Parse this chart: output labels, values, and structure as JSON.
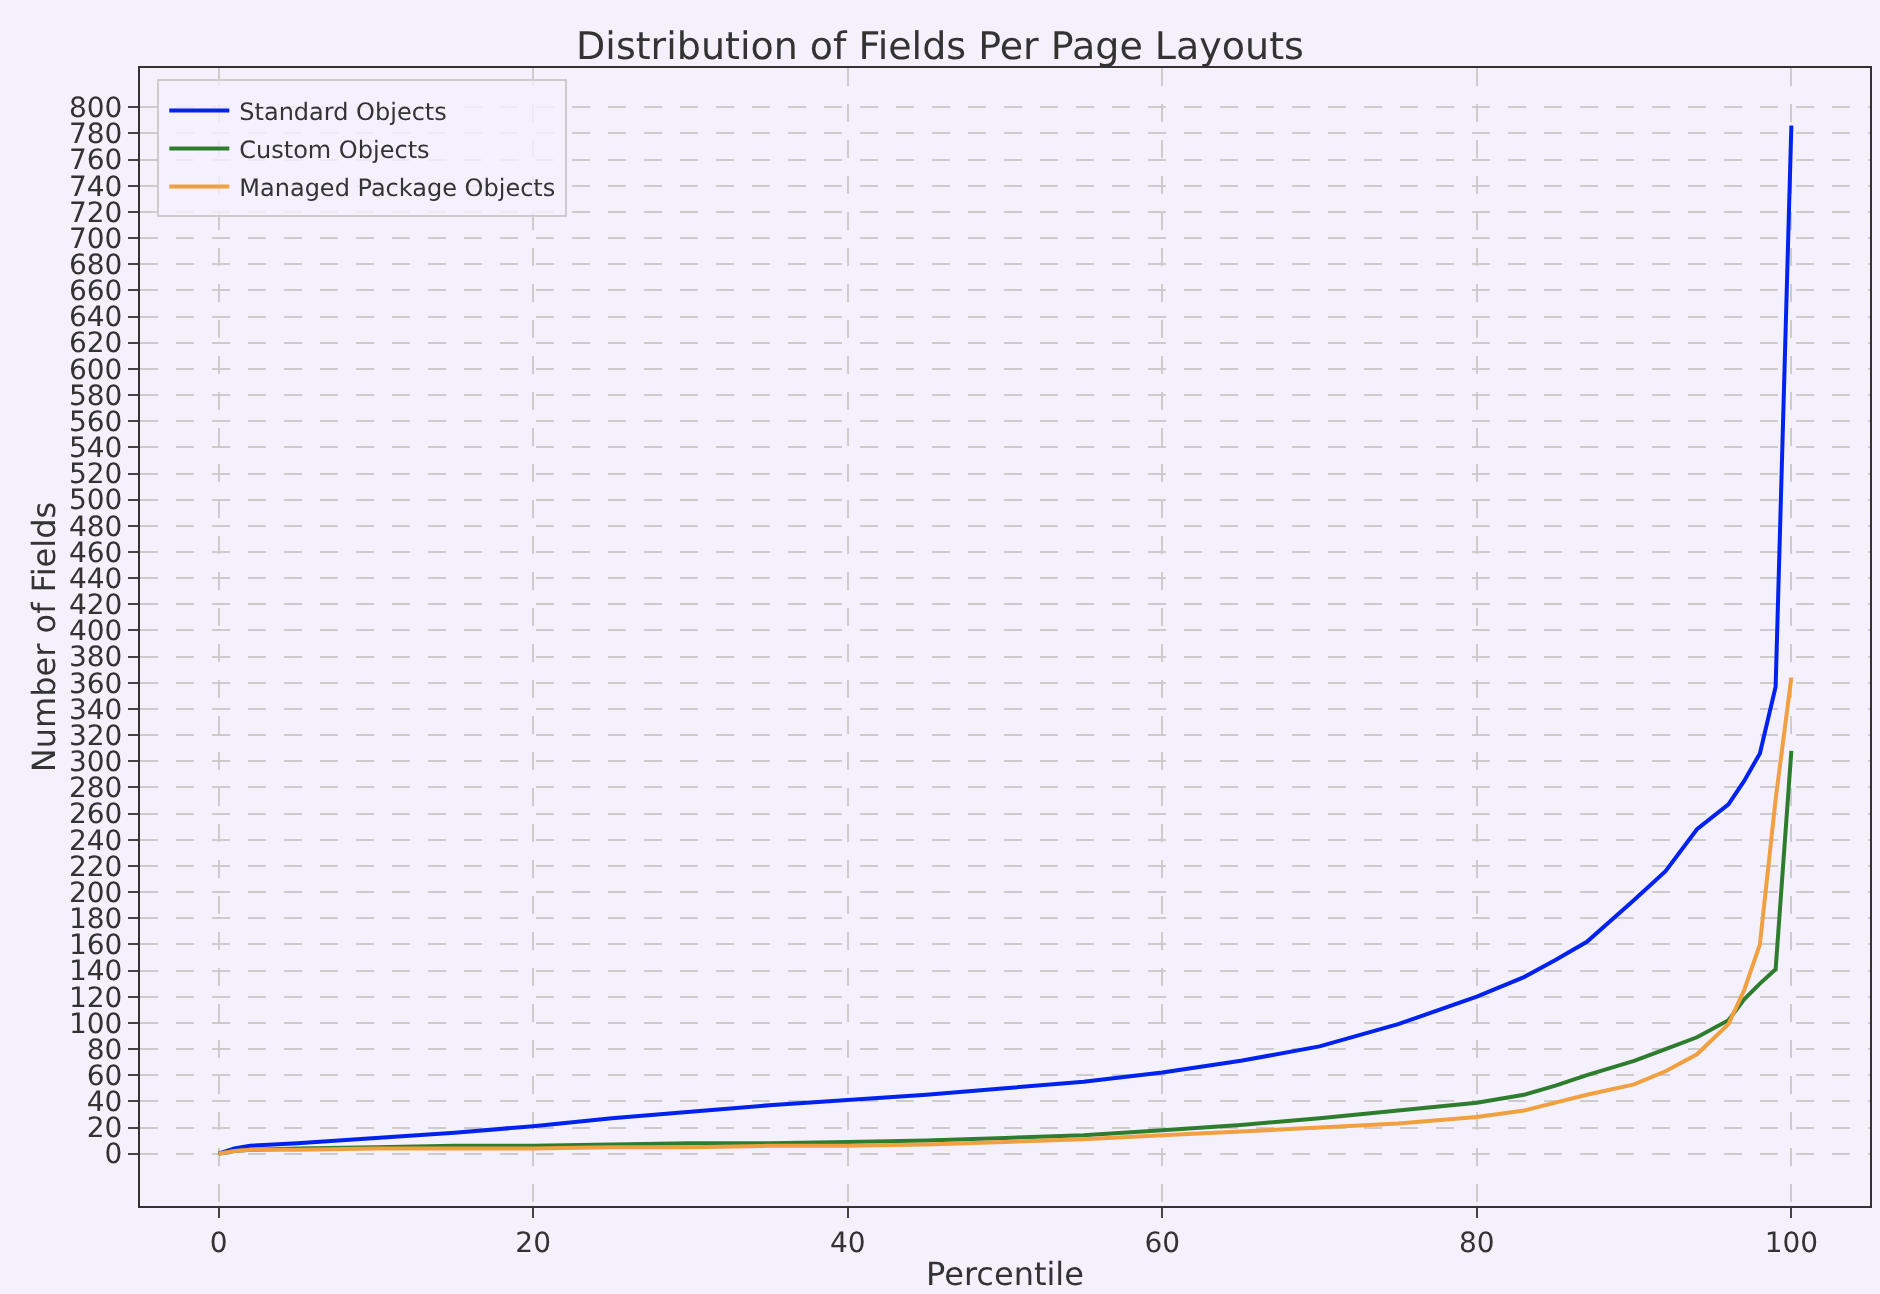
{
  "chart_data": {
    "type": "line",
    "title": "Distribution of Fields Per Page Layouts",
    "xlabel": "Percentile",
    "ylabel": "Number of Fields",
    "x": [
      0,
      1,
      2,
      5,
      10,
      15,
      20,
      25,
      30,
      35,
      40,
      45,
      50,
      55,
      60,
      65,
      70,
      75,
      80,
      83,
      85,
      87,
      90,
      92,
      94,
      96,
      97,
      98,
      99,
      100
    ],
    "series": [
      {
        "name": "Standard Objects",
        "color": "#0022ee",
        "values": [
          0,
          4,
          6,
          8,
          12,
          16,
          21,
          27,
          32,
          37,
          41,
          45,
          50,
          55,
          62,
          71,
          82,
          99,
          120,
          135,
          148,
          162,
          194,
          216,
          248,
          267,
          285,
          306,
          357,
          786
        ]
      },
      {
        "name": "Custom Objects",
        "color": "#2e7d2e",
        "values": [
          0,
          2,
          3,
          4,
          5,
          6,
          6,
          7,
          8,
          8,
          9,
          10,
          12,
          14,
          18,
          22,
          27,
          33,
          39,
          45,
          52,
          60,
          71,
          80,
          89,
          102,
          118,
          130,
          141,
          308
        ]
      },
      {
        "name": "Managed Package Objects",
        "color": "#f0a040",
        "values": [
          0,
          2,
          3,
          3,
          4,
          4,
          4,
          5,
          5,
          6,
          6,
          7,
          9,
          11,
          14,
          17,
          20,
          23,
          28,
          33,
          39,
          45,
          53,
          63,
          76,
          99,
          125,
          160,
          271,
          364
        ]
      }
    ],
    "xlim": [
      -5,
      105
    ],
    "xticks": [
      0,
      20,
      40,
      60,
      80,
      100
    ],
    "ylim": [
      -40,
      830
    ],
    "yticks": [
      0,
      20,
      40,
      60,
      80,
      100,
      120,
      140,
      160,
      180,
      200,
      220,
      240,
      260,
      280,
      300,
      320,
      340,
      360,
      380,
      400,
      420,
      440,
      460,
      480,
      500,
      520,
      540,
      560,
      580,
      600,
      620,
      640,
      660,
      680,
      700,
      720,
      740,
      760,
      780,
      800
    ],
    "grid": true,
    "legend": "top left",
    "line_style": "solid",
    "marker": "none"
  }
}
